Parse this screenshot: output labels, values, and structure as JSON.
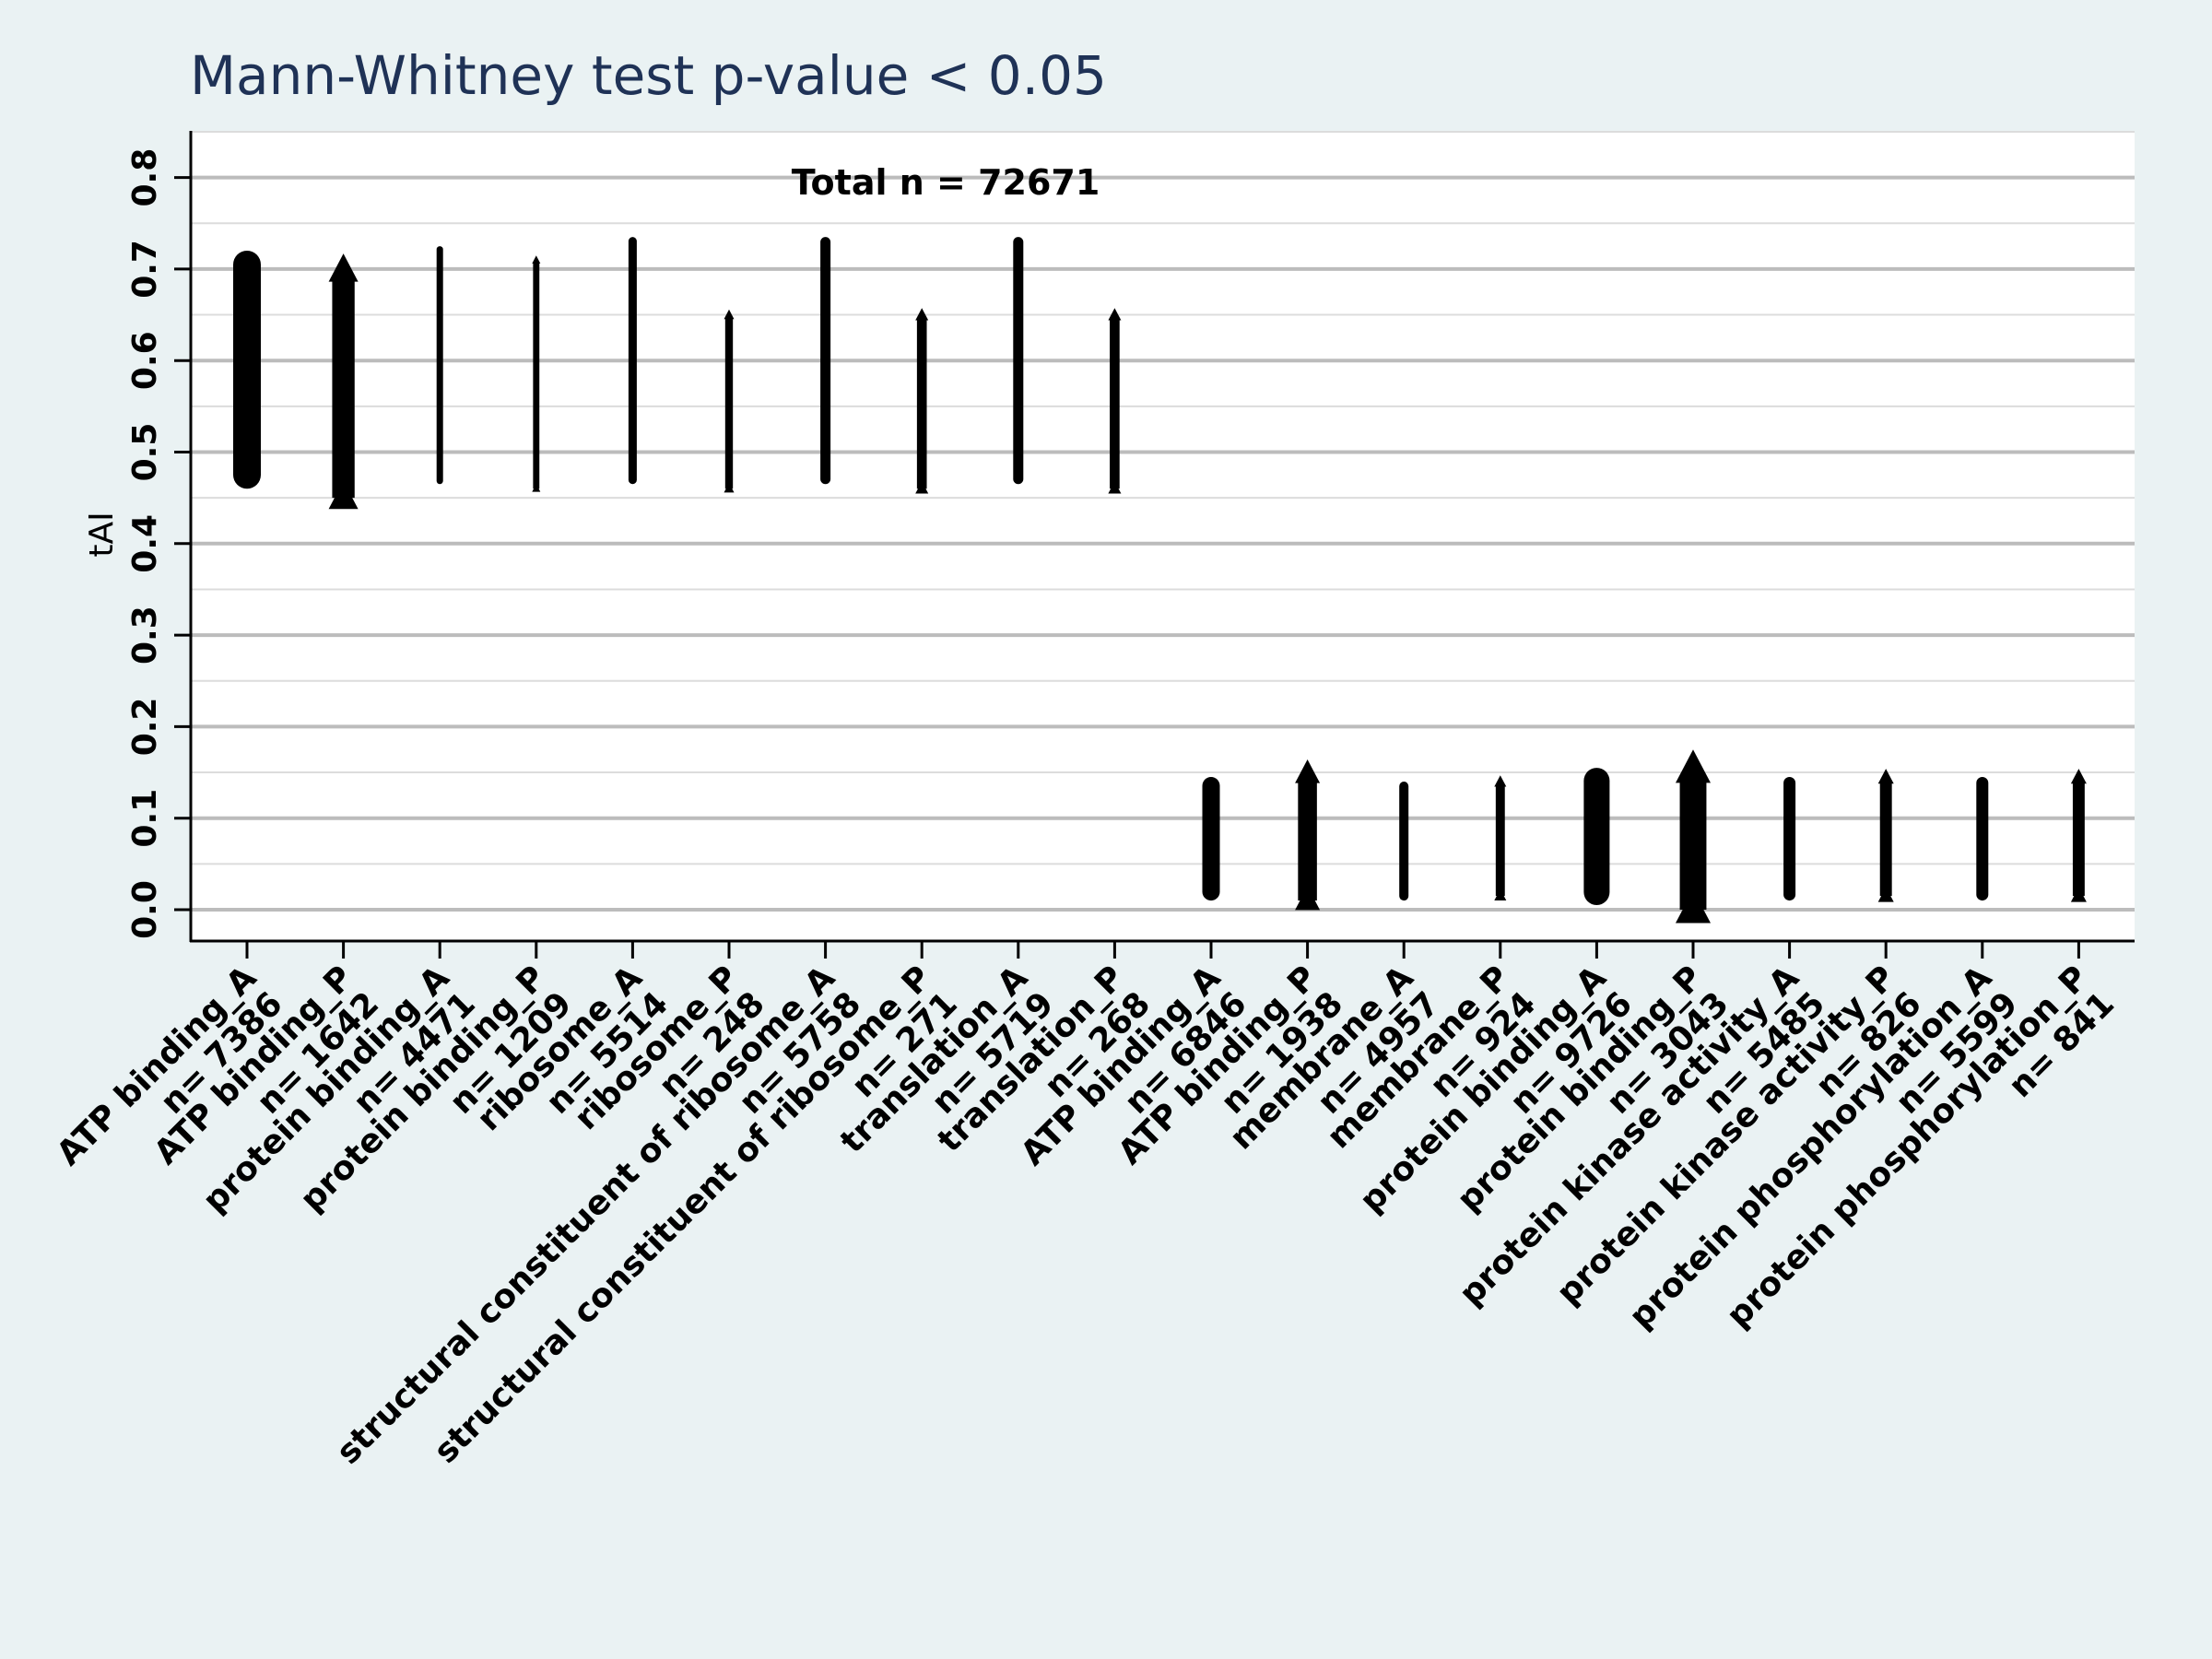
{
  "chart_data": {
    "type": "scatter",
    "title": "Mann-Whitney test  p-value < 0.05",
    "ylabel": "tAI",
    "ylim": [
      -0.035,
      0.85
    ],
    "y_ticks": [
      "0.0",
      "0.1",
      "0.2",
      "0.3",
      "0.4",
      "0.5",
      "0.6",
      "0.7",
      "0.8"
    ],
    "grid": true,
    "annotation": "Total n = 72671",
    "colors": {
      "background": "#eaf2f3",
      "plot_bg": "#ffffff",
      "marker": "#000000",
      "grid": "#c8c8c8",
      "title": "#1f3256"
    },
    "categories": [
      {
        "label": "ATP binding_A",
        "n_label": "n= 7386",
        "marker": "circle",
        "y_min": 0.46,
        "y_max": 0.72,
        "size": 30
      },
      {
        "label": "ATP binding_P",
        "n_label": "n= 1642",
        "marker": "triangle",
        "y_min": 0.45,
        "y_max": 0.7,
        "size": 32
      },
      {
        "label": "protein binding_A",
        "n_label": "n= 4471",
        "marker": "circle",
        "y_min": 0.465,
        "y_max": 0.725,
        "size": 7
      },
      {
        "label": "protein binding_P",
        "n_label": "n= 1209",
        "marker": "triangle",
        "y_min": 0.46,
        "y_max": 0.71,
        "size": 9
      },
      {
        "label": "ribosome_A",
        "n_label": "n= 5514",
        "marker": "circle",
        "y_min": 0.465,
        "y_max": 0.735,
        "size": 9
      },
      {
        "label": "ribosome_P",
        "n_label": "n= 248",
        "marker": "triangle",
        "y_min": 0.46,
        "y_max": 0.65,
        "size": 11
      },
      {
        "label": "structural constituent of ribosome_A",
        "n_label": "n= 5758",
        "marker": "circle",
        "y_min": 0.465,
        "y_max": 0.735,
        "size": 11
      },
      {
        "label": "structural constituent of ribosome_P",
        "n_label": "n= 271",
        "marker": "triangle",
        "y_min": 0.46,
        "y_max": 0.65,
        "size": 14
      },
      {
        "label": "translation_A",
        "n_label": "n= 5719",
        "marker": "circle",
        "y_min": 0.465,
        "y_max": 0.735,
        "size": 11
      },
      {
        "label": "translation_P",
        "n_label": "n= 268",
        "marker": "triangle",
        "y_min": 0.46,
        "y_max": 0.65,
        "size": 14
      },
      {
        "label": "ATP binding_A",
        "n_label": "n= 6846",
        "marker": "circle",
        "y_min": 0.01,
        "y_max": 0.145,
        "size": 19
      },
      {
        "label": "ATP binding_P",
        "n_label": "n= 1938",
        "marker": "triangle",
        "y_min": 0.01,
        "y_max": 0.15,
        "size": 27
      },
      {
        "label": "membrane_A",
        "n_label": "n= 4957",
        "marker": "circle",
        "y_min": 0.01,
        "y_max": 0.14,
        "size": 10
      },
      {
        "label": "membrane_P",
        "n_label": "n= 924",
        "marker": "triangle",
        "y_min": 0.015,
        "y_max": 0.14,
        "size": 13
      },
      {
        "label": "protein binding_A",
        "n_label": "n= 9726",
        "marker": "circle",
        "y_min": 0.005,
        "y_max": 0.155,
        "size": 28
      },
      {
        "label": "protein binding_P",
        "n_label": "n= 3043",
        "marker": "triangle",
        "y_min": 0.0,
        "y_max": 0.155,
        "size": 38
      },
      {
        "label": "protein kinase activity_A",
        "n_label": "n= 5485",
        "marker": "circle",
        "y_min": 0.01,
        "y_max": 0.145,
        "size": 13
      },
      {
        "label": "protein kinase activity_P",
        "n_label": "n= 826",
        "marker": "triangle",
        "y_min": 0.015,
        "y_max": 0.145,
        "size": 17
      },
      {
        "label": "protein phosphorylation_A",
        "n_label": "n= 5599",
        "marker": "circle",
        "y_min": 0.01,
        "y_max": 0.145,
        "size": 13
      },
      {
        "label": "protein phosphorylation_P",
        "n_label": "n= 841",
        "marker": "triangle",
        "y_min": 0.015,
        "y_max": 0.145,
        "size": 17
      }
    ]
  }
}
